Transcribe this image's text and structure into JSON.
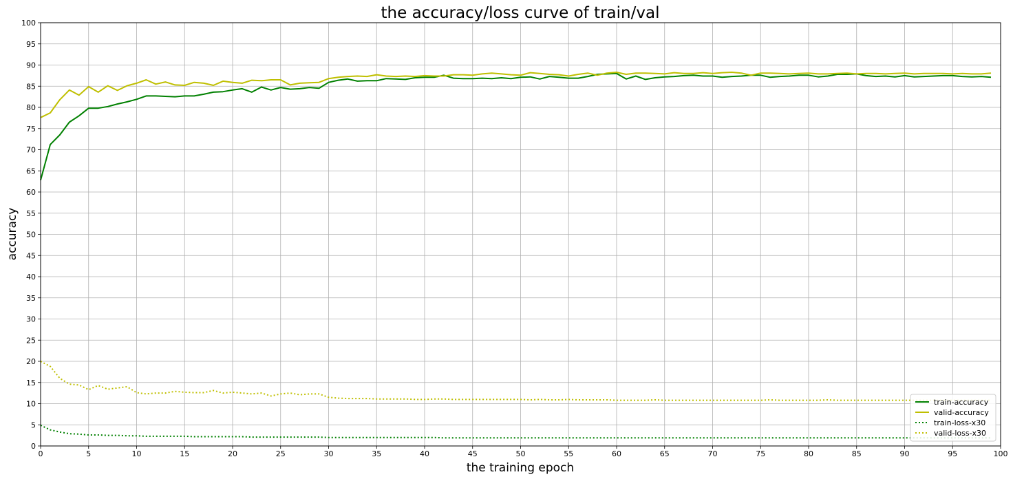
{
  "chart_data": {
    "type": "line",
    "title": "the accuracy/loss curve of train/val",
    "xlabel": "the training epoch",
    "ylabel": "accuracy",
    "xlim": [
      0,
      100
    ],
    "ylim": [
      0,
      100
    ],
    "xticks": [
      0,
      5,
      10,
      15,
      20,
      25,
      30,
      35,
      40,
      45,
      50,
      55,
      60,
      65,
      70,
      75,
      80,
      85,
      90,
      95,
      100
    ],
    "yticks": [
      0,
      5,
      10,
      15,
      20,
      25,
      30,
      35,
      40,
      45,
      50,
      55,
      60,
      65,
      70,
      75,
      80,
      85,
      90,
      95,
      100
    ],
    "grid": true,
    "legend_position": "lower-right",
    "series": [
      {
        "name": "train-accuracy",
        "color": "#008000",
        "style": "solid",
        "x": [
          0,
          1,
          2,
          3,
          4,
          5,
          6,
          7,
          8,
          9,
          10,
          11,
          12,
          13,
          14,
          15,
          16,
          17,
          18,
          19,
          20,
          21,
          22,
          23,
          24,
          25,
          26,
          27,
          28,
          29,
          30,
          31,
          32,
          33,
          34,
          35,
          36,
          37,
          38,
          39,
          40,
          41,
          42,
          43,
          44,
          45,
          46,
          47,
          48,
          49,
          50,
          51,
          52,
          53,
          54,
          55,
          56,
          57,
          58,
          59,
          60,
          61,
          62,
          63,
          64,
          65,
          66,
          67,
          68,
          69,
          70,
          71,
          72,
          73,
          74,
          75,
          76,
          77,
          78,
          79,
          80,
          81,
          82,
          83,
          84,
          85,
          86,
          87,
          88,
          89,
          90,
          91,
          92,
          93,
          94,
          95,
          96,
          97,
          98,
          99
        ],
        "values": [
          62.8,
          71.2,
          73.5,
          76.5,
          78.0,
          79.8,
          79.8,
          80.2,
          80.8,
          81.3,
          81.9,
          82.7,
          82.7,
          82.6,
          82.5,
          82.7,
          82.7,
          83.1,
          83.6,
          83.7,
          84.1,
          84.4,
          83.6,
          84.8,
          84.1,
          84.7,
          84.3,
          84.4,
          84.7,
          84.5,
          85.9,
          86.4,
          86.7,
          86.2,
          86.3,
          86.3,
          86.8,
          86.7,
          86.6,
          87.0,
          87.1,
          87.1,
          87.6,
          86.9,
          86.8,
          86.8,
          86.9,
          86.8,
          87.0,
          86.8,
          87.1,
          87.2,
          86.7,
          87.3,
          87.1,
          86.9,
          86.9,
          87.3,
          87.8,
          87.9,
          88.0,
          86.7,
          87.4,
          86.6,
          87.0,
          87.2,
          87.3,
          87.5,
          87.6,
          87.4,
          87.4,
          87.1,
          87.3,
          87.4,
          87.6,
          87.6,
          87.1,
          87.3,
          87.4,
          87.6,
          87.6,
          87.2,
          87.4,
          87.8,
          87.8,
          87.9,
          87.5,
          87.3,
          87.4,
          87.2,
          87.5,
          87.2,
          87.3,
          87.4,
          87.5,
          87.5,
          87.3,
          87.2,
          87.3,
          87.1
        ]
      },
      {
        "name": "valid-accuracy",
        "color": "#bfbf00",
        "style": "solid",
        "x": [
          0,
          1,
          2,
          3,
          4,
          5,
          6,
          7,
          8,
          9,
          10,
          11,
          12,
          13,
          14,
          15,
          16,
          17,
          18,
          19,
          20,
          21,
          22,
          23,
          24,
          25,
          26,
          27,
          28,
          29,
          30,
          31,
          32,
          33,
          34,
          35,
          36,
          37,
          38,
          39,
          40,
          41,
          42,
          43,
          44,
          45,
          46,
          47,
          48,
          49,
          50,
          51,
          52,
          53,
          54,
          55,
          56,
          57,
          58,
          59,
          60,
          61,
          62,
          63,
          64,
          65,
          66,
          67,
          68,
          69,
          70,
          71,
          72,
          73,
          74,
          75,
          76,
          77,
          78,
          79,
          80,
          81,
          82,
          83,
          84,
          85,
          86,
          87,
          88,
          89,
          90,
          91,
          92,
          93,
          94,
          95,
          96,
          97,
          98,
          99
        ],
        "values": [
          77.6,
          78.7,
          81.8,
          84.1,
          82.9,
          84.9,
          83.6,
          85.1,
          84.0,
          85.1,
          85.7,
          86.5,
          85.5,
          86.0,
          85.3,
          85.2,
          85.9,
          85.7,
          85.2,
          86.2,
          85.9,
          85.7,
          86.4,
          86.3,
          86.5,
          86.5,
          85.3,
          85.7,
          85.8,
          85.9,
          86.8,
          87.1,
          87.3,
          87.4,
          87.3,
          87.7,
          87.4,
          87.3,
          87.4,
          87.3,
          87.5,
          87.4,
          87.4,
          87.7,
          87.7,
          87.6,
          87.9,
          88.1,
          87.9,
          87.7,
          87.6,
          88.2,
          88.0,
          87.8,
          87.7,
          87.4,
          87.8,
          88.1,
          87.6,
          88.1,
          88.3,
          87.8,
          88.1,
          88.1,
          88.0,
          87.9,
          88.2,
          88.0,
          88.0,
          88.2,
          88.0,
          88.2,
          88.3,
          88.1,
          87.6,
          88.1,
          88.1,
          88.0,
          87.9,
          88.0,
          88.1,
          87.9,
          87.9,
          88.0,
          88.1,
          87.9,
          88.0,
          88.0,
          87.9,
          88.0,
          88.1,
          87.9,
          88.0,
          88.0,
          88.0,
          87.9,
          88.0,
          87.9,
          87.9,
          88.1
        ]
      },
      {
        "name": "train-loss-x30",
        "color": "#008000",
        "style": "dotted",
        "x": [
          0,
          1,
          2,
          3,
          4,
          5,
          6,
          7,
          8,
          9,
          10,
          11,
          12,
          13,
          14,
          15,
          16,
          17,
          18,
          19,
          20,
          21,
          22,
          23,
          24,
          25,
          26,
          27,
          28,
          29,
          30,
          31,
          32,
          33,
          34,
          35,
          36,
          37,
          38,
          39,
          40,
          41,
          42,
          43,
          44,
          45,
          46,
          47,
          48,
          49,
          50,
          51,
          52,
          53,
          54,
          55,
          56,
          57,
          58,
          59,
          60,
          61,
          62,
          63,
          64,
          65,
          66,
          67,
          68,
          69,
          70,
          71,
          72,
          73,
          74,
          75,
          76,
          77,
          78,
          79,
          80,
          81,
          82,
          83,
          84,
          85,
          86,
          87,
          88,
          89,
          90,
          91,
          92,
          93,
          94,
          95,
          96,
          97,
          98,
          99
        ],
        "values": [
          4.9,
          3.8,
          3.3,
          2.9,
          2.8,
          2.6,
          2.6,
          2.5,
          2.5,
          2.4,
          2.4,
          2.3,
          2.3,
          2.3,
          2.3,
          2.3,
          2.2,
          2.2,
          2.2,
          2.2,
          2.2,
          2.2,
          2.1,
          2.1,
          2.1,
          2.1,
          2.1,
          2.1,
          2.1,
          2.1,
          2.0,
          2.0,
          2.0,
          2.0,
          2.0,
          2.0,
          2.0,
          2.0,
          2.0,
          2.0,
          2.0,
          2.0,
          1.9,
          1.9,
          1.9,
          1.9,
          1.9,
          1.9,
          1.9,
          1.9,
          1.9,
          1.9,
          1.9,
          1.9,
          1.9,
          1.9,
          1.9,
          1.9,
          1.9,
          1.9,
          1.9,
          1.9,
          1.9,
          1.9,
          1.9,
          1.9,
          1.9,
          1.9,
          1.9,
          1.9,
          1.9,
          1.9,
          1.9,
          1.9,
          1.9,
          1.9,
          1.9,
          1.9,
          1.9,
          1.9,
          1.9,
          1.9,
          1.9,
          1.9,
          1.9,
          1.9,
          1.9,
          1.9,
          1.9,
          1.9,
          1.9,
          1.9,
          1.9,
          1.9,
          1.9,
          1.9,
          1.9,
          1.9,
          1.9,
          1.9
        ]
      },
      {
        "name": "valid-loss-x30",
        "color": "#bfbf00",
        "style": "dotted",
        "x": [
          0,
          1,
          2,
          3,
          4,
          5,
          6,
          7,
          8,
          9,
          10,
          11,
          12,
          13,
          14,
          15,
          16,
          17,
          18,
          19,
          20,
          21,
          22,
          23,
          24,
          25,
          26,
          27,
          28,
          29,
          30,
          31,
          32,
          33,
          34,
          35,
          36,
          37,
          38,
          39,
          40,
          41,
          42,
          43,
          44,
          45,
          46,
          47,
          48,
          49,
          50,
          51,
          52,
          53,
          54,
          55,
          56,
          57,
          58,
          59,
          60,
          61,
          62,
          63,
          64,
          65,
          66,
          67,
          68,
          69,
          70,
          71,
          72,
          73,
          74,
          75,
          76,
          77,
          78,
          79,
          80,
          81,
          82,
          83,
          84,
          85,
          86,
          87,
          88,
          89,
          90,
          91,
          92,
          93,
          94,
          95,
          96,
          97,
          98,
          99
        ],
        "values": [
          20.0,
          18.8,
          16.0,
          14.6,
          14.4,
          13.3,
          14.3,
          13.4,
          13.7,
          14.0,
          12.6,
          12.3,
          12.5,
          12.5,
          12.9,
          12.7,
          12.6,
          12.6,
          13.1,
          12.5,
          12.7,
          12.5,
          12.3,
          12.5,
          11.8,
          12.3,
          12.5,
          12.1,
          12.3,
          12.3,
          11.5,
          11.3,
          11.2,
          11.2,
          11.2,
          11.1,
          11.1,
          11.1,
          11.1,
          11.0,
          11.0,
          11.1,
          11.1,
          11.0,
          11.0,
          11.0,
          11.0,
          11.0,
          11.0,
          11.0,
          11.0,
          10.9,
          11.0,
          10.9,
          10.9,
          11.0,
          10.9,
          10.9,
          10.9,
          10.9,
          10.8,
          10.8,
          10.8,
          10.8,
          10.9,
          10.8,
          10.8,
          10.8,
          10.8,
          10.8,
          10.8,
          10.8,
          10.8,
          10.8,
          10.8,
          10.8,
          10.9,
          10.8,
          10.8,
          10.8,
          10.8,
          10.8,
          10.9,
          10.8,
          10.8,
          10.8,
          10.8,
          10.8,
          10.8,
          10.8,
          10.8,
          10.8,
          10.8,
          10.8,
          10.8,
          10.8,
          10.8,
          10.8,
          10.8,
          10.8
        ]
      }
    ]
  }
}
